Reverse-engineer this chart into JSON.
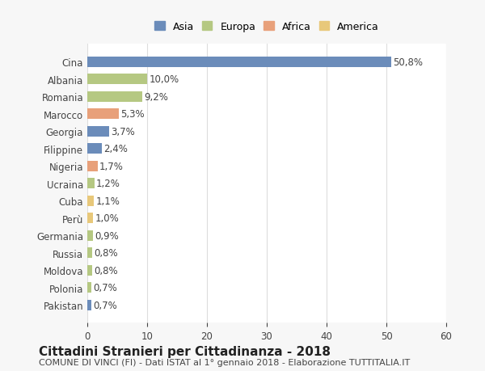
{
  "categories": [
    "Cina",
    "Albania",
    "Romania",
    "Marocco",
    "Georgia",
    "Filippine",
    "Nigeria",
    "Ucraina",
    "Cuba",
    "Perù",
    "Germania",
    "Russia",
    "Moldova",
    "Polonia",
    "Pakistan"
  ],
  "values": [
    50.8,
    10.0,
    9.2,
    5.3,
    3.7,
    2.4,
    1.7,
    1.2,
    1.1,
    1.0,
    0.9,
    0.8,
    0.8,
    0.7,
    0.7
  ],
  "labels": [
    "50,8%",
    "10,0%",
    "9,2%",
    "5,3%",
    "3,7%",
    "2,4%",
    "1,7%",
    "1,2%",
    "1,1%",
    "1,0%",
    "0,9%",
    "0,8%",
    "0,8%",
    "0,7%",
    "0,7%"
  ],
  "colors": [
    "#6b8cba",
    "#b5c882",
    "#b5c882",
    "#e8a07a",
    "#6b8cba",
    "#6b8cba",
    "#e8a07a",
    "#b5c882",
    "#e8c87a",
    "#e8c87a",
    "#b5c882",
    "#b5c882",
    "#b5c882",
    "#b5c882",
    "#6b8cba"
  ],
  "continent": [
    "Asia",
    "Europa",
    "Europa",
    "Africa",
    "Asia",
    "Asia",
    "Africa",
    "Europa",
    "America",
    "America",
    "Europa",
    "Europa",
    "Europa",
    "Europa",
    "Asia"
  ],
  "legend_labels": [
    "Asia",
    "Europa",
    "Africa",
    "America"
  ],
  "legend_colors": [
    "#6b8cba",
    "#b5c882",
    "#e8a07a",
    "#e8c87a"
  ],
  "title": "Cittadini Stranieri per Cittadinanza - 2018",
  "subtitle": "COMUNE DI VINCI (FI) - Dati ISTAT al 1° gennaio 2018 - Elaborazione TUTTITALIA.IT",
  "xlim": [
    0,
    60
  ],
  "xticks": [
    0,
    10,
    20,
    30,
    40,
    50,
    60
  ],
  "bg_color": "#f7f7f7",
  "plot_bg_color": "#ffffff",
  "grid_color": "#dddddd",
  "bar_height": 0.6,
  "title_fontsize": 11,
  "subtitle_fontsize": 8,
  "tick_fontsize": 8.5,
  "label_fontsize": 8.5,
  "legend_fontsize": 9
}
